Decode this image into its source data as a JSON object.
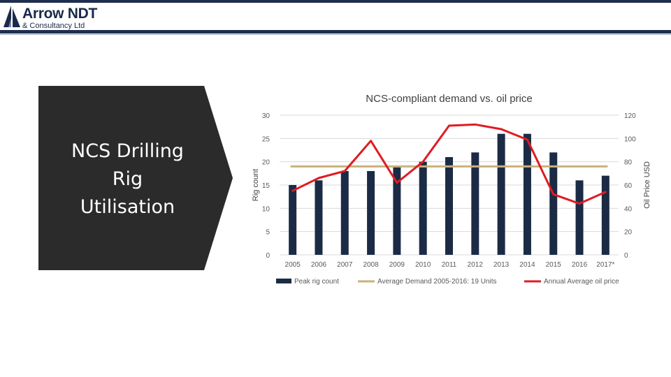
{
  "header": {
    "logo_title": "Arrow NDT",
    "logo_subtitle": "& Consultancy Ltd",
    "colors": {
      "navy": "#1f2d4e"
    }
  },
  "panel": {
    "title": "NCS Drilling\nRig\nUtilisation",
    "color": "#2b2b2b"
  },
  "chart_data": {
    "type": "bar",
    "title": "NCS-compliant demand vs. oil price",
    "categories": [
      "2005",
      "2006",
      "2007",
      "2008",
      "2009",
      "2010",
      "2011",
      "2012",
      "2013",
      "2014",
      "2015",
      "2016",
      "2017*"
    ],
    "ylabel": "Rig count",
    "y2label": "Oil Price USD",
    "ylim": [
      0,
      30
    ],
    "y2lim": [
      0,
      120
    ],
    "yticks": [
      0,
      5,
      10,
      15,
      20,
      25,
      30
    ],
    "y2ticks": [
      0,
      20,
      40,
      60,
      80,
      100,
      120
    ],
    "grid": true,
    "legend_position": "bottom",
    "series": [
      {
        "name": "Peak rig count",
        "type": "bar",
        "axis": "left",
        "color": "#1c2b45",
        "values": [
          15,
          16,
          18,
          18,
          19,
          20,
          21,
          22,
          26,
          26,
          22,
          16,
          17
        ]
      },
      {
        "name": "Average Demand 2005-2016: 19 Units",
        "type": "line",
        "axis": "left",
        "color": "#c9b27a",
        "values": [
          19,
          19,
          19,
          19,
          19,
          19,
          19,
          19,
          19,
          19,
          19,
          19,
          19
        ]
      },
      {
        "name": "Annual Average oil price",
        "type": "line",
        "axis": "right",
        "color": "#e01b22",
        "values": [
          55,
          66,
          72,
          98,
          62,
          80,
          111,
          112,
          108,
          99,
          52,
          44,
          54
        ]
      }
    ]
  }
}
